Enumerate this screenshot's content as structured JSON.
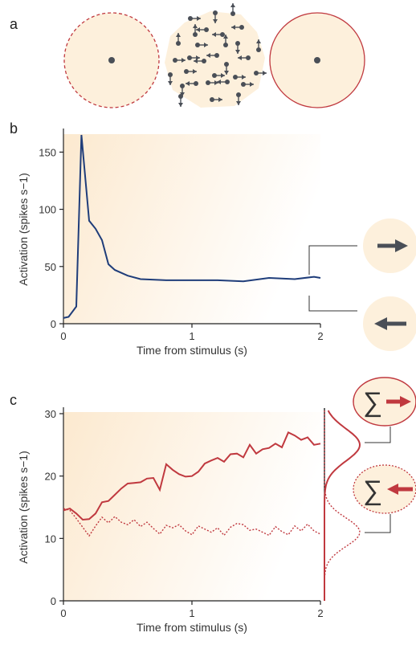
{
  "panels": {
    "a": {
      "label": "a"
    },
    "b": {
      "label": "b"
    },
    "c": {
      "label": "c"
    }
  },
  "colors": {
    "blue": "#1f3d7a",
    "red": "#c0393f",
    "dark": "#4a4f57",
    "bg": "#fdf0dc"
  },
  "icons": {
    "sum": "∑",
    "arrow_right": "right-arrow-icon",
    "arrow_left": "left-arrow-icon"
  },
  "chart_data": [
    {
      "type": "line",
      "panel": "b",
      "xlabel": "Time from stimulus (s)",
      "ylabel": "Activation (spikes s−1)",
      "xlim": [
        0,
        2
      ],
      "ylim": [
        0,
        165
      ],
      "xticks": [
        0,
        1,
        2
      ],
      "yticks": [
        0,
        50,
        100,
        150
      ],
      "series": [
        {
          "color": "#1f3d7a",
          "style": "solid",
          "x": [
            0,
            0.04,
            0.1,
            0.14,
            0.2,
            0.25,
            0.3,
            0.35,
            0.4,
            0.5,
            0.6,
            0.8,
            1.0,
            1.2,
            1.4,
            1.6,
            1.8,
            1.95,
            2.0
          ],
          "y": [
            5,
            6,
            15,
            165,
            90,
            83,
            73,
            52,
            47,
            42,
            39,
            38,
            38,
            38,
            37,
            40,
            39,
            41,
            40
          ]
        }
      ]
    },
    {
      "type": "line",
      "panel": "c",
      "xlabel": "Time from stimulus (s)",
      "ylabel": "Activation (spikes s−1)",
      "xlim": [
        0,
        2
      ],
      "ylim": [
        0,
        30
      ],
      "xticks": [
        0,
        1,
        2
      ],
      "yticks": [
        0,
        10,
        20,
        30
      ],
      "series": [
        {
          "color": "#c0393f",
          "style": "solid",
          "x": [
            0,
            0.05,
            0.1,
            0.15,
            0.2,
            0.25,
            0.3,
            0.35,
            0.4,
            0.45,
            0.5,
            0.55,
            0.6,
            0.65,
            0.7,
            0.75,
            0.8,
            0.85,
            0.9,
            0.95,
            1.0,
            1.05,
            1.1,
            1.15,
            1.2,
            1.25,
            1.3,
            1.35,
            1.4,
            1.45,
            1.5,
            1.55,
            1.6,
            1.65,
            1.7,
            1.75,
            1.8,
            1.85,
            1.9,
            1.95,
            2.0
          ],
          "y": [
            14.5,
            14.8,
            14.0,
            13.0,
            13.1,
            14.0,
            15.8,
            16.0,
            17.0,
            18.0,
            18.8,
            18.9,
            19.0,
            19.6,
            19.7,
            17.8,
            21.9,
            21.0,
            20.3,
            19.9,
            20.0,
            20.7,
            22.0,
            22.5,
            22.9,
            22.3,
            23.5,
            23.6,
            23.0,
            25.0,
            23.6,
            24.3,
            24.5,
            25.2,
            24.6,
            27.0,
            26.5,
            25.8,
            26.2,
            25.0,
            25.2
          ]
        },
        {
          "color": "#c0393f",
          "style": "dotted",
          "x": [
            0,
            0.05,
            0.1,
            0.15,
            0.2,
            0.25,
            0.3,
            0.35,
            0.4,
            0.45,
            0.5,
            0.55,
            0.6,
            0.65,
            0.7,
            0.75,
            0.8,
            0.85,
            0.9,
            0.95,
            1.0,
            1.05,
            1.1,
            1.15,
            1.2,
            1.25,
            1.3,
            1.35,
            1.4,
            1.45,
            1.5,
            1.55,
            1.6,
            1.65,
            1.7,
            1.75,
            1.8,
            1.85,
            1.9,
            1.95,
            2.0
          ],
          "y": [
            14.8,
            14.5,
            13.2,
            11.8,
            10.4,
            12.0,
            13.4,
            12.5,
            13.5,
            12.6,
            12.2,
            13.0,
            11.9,
            12.6,
            11.6,
            10.7,
            12.1,
            11.7,
            12.2,
            11.2,
            10.6,
            12.0,
            11.5,
            11.0,
            11.7,
            10.5,
            11.8,
            12.4,
            12.2,
            11.3,
            11.5,
            11.0,
            10.5,
            11.9,
            11.1,
            10.6,
            12.0,
            11.2,
            12.3,
            11.2,
            10.7
          ]
        }
      ]
    }
  ]
}
